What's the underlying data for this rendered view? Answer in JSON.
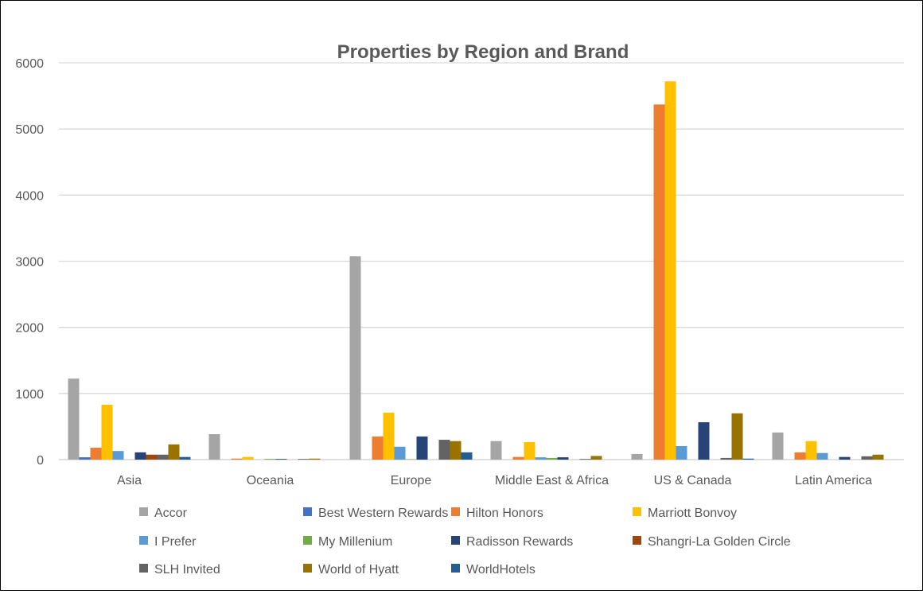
{
  "chart_data": {
    "type": "bar",
    "title": "Properties by Region and Brand",
    "xlabel": "",
    "ylabel": "",
    "ylim": [
      0,
      6000
    ],
    "yticks": [
      0,
      1000,
      2000,
      3000,
      4000,
      5000,
      6000
    ],
    "grid": true,
    "legend_position": "bottom",
    "categories": [
      "Asia",
      "Oceania",
      "Europe",
      "Middle East & Africa",
      "US & Canada",
      "Latin  America"
    ],
    "series": [
      {
        "name": "Accor",
        "color": "#A5A5A5",
        "values": [
          1225,
          385,
          3075,
          280,
          85,
          410
        ]
      },
      {
        "name": "Best Western Rewards",
        "color": "#4472C4",
        "values": [
          35,
          0,
          0,
          0,
          0,
          0
        ]
      },
      {
        "name": "Hilton Honors",
        "color": "#ED7D31",
        "values": [
          180,
          15,
          350,
          40,
          5370,
          110
        ]
      },
      {
        "name": "Marriott Bonvoy",
        "color": "#FFC000",
        "values": [
          830,
          40,
          710,
          265,
          5720,
          280
        ]
      },
      {
        "name": "I Prefer",
        "color": "#5B9BD5",
        "values": [
          130,
          0,
          195,
          35,
          205,
          100
        ]
      },
      {
        "name": "My Millenium",
        "color": "#70AD47",
        "values": [
          0,
          10,
          5,
          25,
          0,
          0
        ]
      },
      {
        "name": "Radisson Rewards",
        "color": "#264478",
        "values": [
          110,
          10,
          350,
          35,
          565,
          40
        ]
      },
      {
        "name": "Shangri-La Golden Circle",
        "color": "#9E480E",
        "values": [
          75,
          0,
          0,
          0,
          0,
          0
        ]
      },
      {
        "name": "SLH Invited",
        "color": "#636363",
        "values": [
          75,
          10,
          300,
          10,
          25,
          50
        ]
      },
      {
        "name": "World of Hyatt",
        "color": "#997300",
        "values": [
          230,
          15,
          280,
          55,
          700,
          75
        ]
      },
      {
        "name": "WorldHotels",
        "color": "#255E91",
        "values": [
          40,
          0,
          110,
          0,
          15,
          0
        ]
      }
    ]
  }
}
